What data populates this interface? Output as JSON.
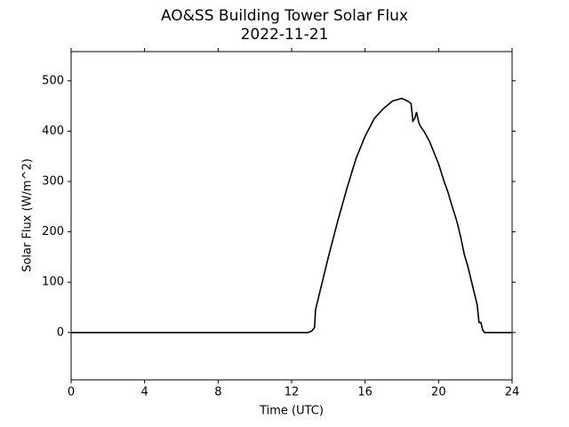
{
  "chart_data": {
    "type": "line",
    "title": "AO&SS Building Tower Solar Flux",
    "subtitle": "2022-11-21",
    "x_label": "Time (UTC)",
    "y_label": "Solar Flux (W/m^2)",
    "xlim": [
      0,
      24
    ],
    "xticks": [
      0,
      4,
      8,
      12,
      16,
      20,
      24
    ],
    "ylim": [
      -94,
      558
    ],
    "yticks": [
      0,
      100,
      200,
      300,
      400,
      500
    ],
    "grid": false,
    "series": [
      {
        "color": "#000000",
        "x": [
          0,
          12.9,
          13.1,
          13.25,
          13.3,
          13.5,
          14,
          14.5,
          15,
          15.5,
          16,
          16.5,
          17,
          17.5,
          18,
          18.3,
          18.5,
          18.6,
          18.7,
          18.8,
          18.9,
          19,
          19.2,
          19.5,
          20,
          20.3,
          20.5,
          20.7,
          21,
          21.2,
          21.4,
          21.6,
          21.8,
          22,
          22.1,
          22.2,
          22.3,
          22.4,
          22.5,
          24
        ],
        "values": [
          0,
          0,
          3,
          10,
          45,
          75,
          150,
          220,
          285,
          345,
          390,
          425,
          445,
          460,
          465,
          460,
          455,
          420,
          425,
          438,
          420,
          410,
          400,
          380,
          335,
          300,
          280,
          255,
          220,
          190,
          155,
          130,
          100,
          70,
          55,
          20,
          20,
          5,
          0,
          0
        ]
      }
    ]
  }
}
